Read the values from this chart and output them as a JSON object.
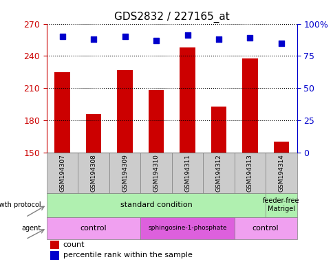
{
  "title": "GDS2832 / 227165_at",
  "samples": [
    "GSM194307",
    "GSM194308",
    "GSM194309",
    "GSM194310",
    "GSM194311",
    "GSM194312",
    "GSM194313",
    "GSM194314"
  ],
  "counts": [
    225,
    186,
    227,
    208,
    248,
    193,
    238,
    160
  ],
  "percentile_ranks": [
    90,
    88,
    90,
    87,
    91,
    88,
    89,
    85
  ],
  "ylim_left": [
    150,
    270
  ],
  "ylim_right": [
    0,
    100
  ],
  "yticks_left": [
    150,
    180,
    210,
    240,
    270
  ],
  "yticks_right": [
    0,
    25,
    50,
    75,
    100
  ],
  "ytick_labels_right": [
    "0",
    "25",
    "50",
    "75",
    "100%"
  ],
  "bar_color": "#cc0000",
  "dot_color": "#0000cc",
  "bar_width": 0.5,
  "left_axis_color": "#cc0000",
  "right_axis_color": "#0000cc",
  "grid_color": "black",
  "bg_color": "#ffffff",
  "legend_count_label": "count",
  "legend_percentile_label": "percentile rank within the sample",
  "sample_box_color": "#cccccc",
  "gp_standard_color": "#b0f0b0",
  "gp_feeder_color": "#b0f0b0",
  "agent_control_color": "#f0a0f0",
  "agent_sphingo_color": "#dd60dd"
}
